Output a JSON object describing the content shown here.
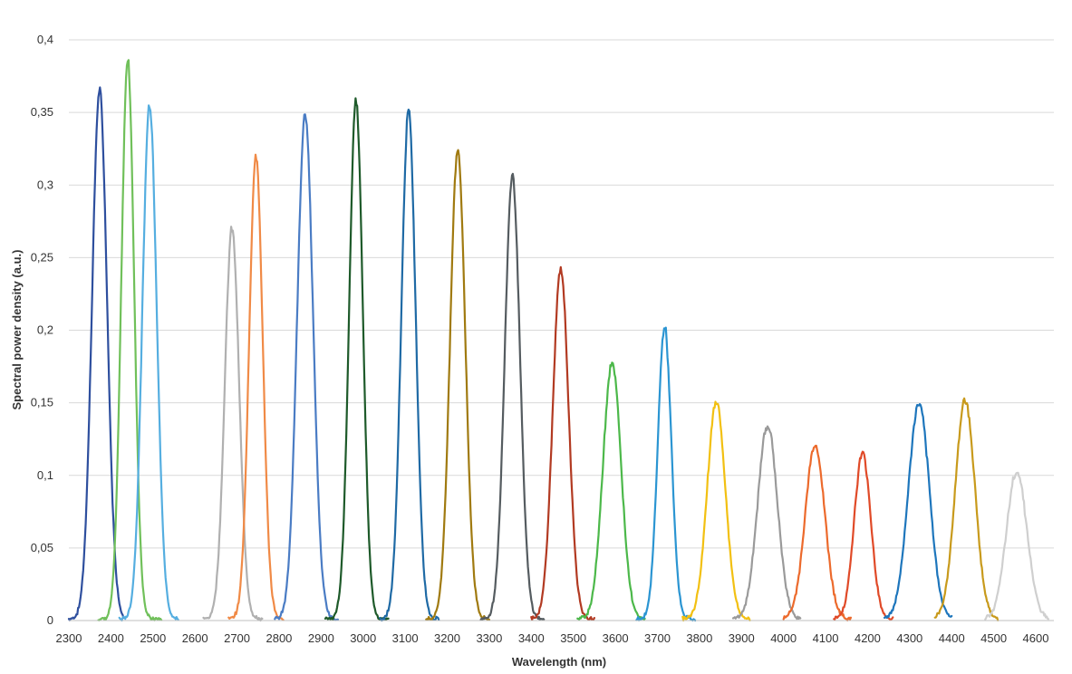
{
  "chart_data": {
    "type": "line",
    "title": "",
    "xlabel": "Wavelength (nm)",
    "ylabel": "Spectral power density (a.u.)",
    "xlim": [
      2300,
      4650
    ],
    "ylim": [
      0,
      0.4
    ],
    "x_ticks": [
      2300,
      2400,
      2500,
      2600,
      2700,
      2800,
      2900,
      3000,
      3100,
      3200,
      3300,
      3400,
      3500,
      3600,
      3700,
      3800,
      3900,
      4000,
      4100,
      4200,
      4300,
      4400,
      4500,
      4600
    ],
    "y_ticks": [
      0,
      0.05,
      0.1,
      0.15,
      0.2,
      0.25,
      0.3,
      0.35,
      0.4
    ],
    "y_tick_labels": [
      "0",
      "0,05",
      "0,1",
      "0,15",
      "0,2",
      "0,25",
      "0,3",
      "0,35",
      "0,4"
    ],
    "grid": "horizontal",
    "legend": "none",
    "series": [
      {
        "color": "#2e4f9e",
        "center": 2373,
        "peak": 0.364,
        "fwhm": 40,
        "start": 2300,
        "end": 2430
      },
      {
        "color": "#70c05a",
        "center": 2440,
        "peak": 0.386,
        "fwhm": 34,
        "start": 2370,
        "end": 2520
      },
      {
        "color": "#55aee0",
        "center": 2492,
        "peak": 0.355,
        "fwhm": 38,
        "start": 2420,
        "end": 2560
      },
      {
        "color": "#b0b0b0",
        "center": 2688,
        "peak": 0.269,
        "fwhm": 38,
        "start": 2620,
        "end": 2760
      },
      {
        "color": "#f08a46",
        "center": 2745,
        "peak": 0.319,
        "fwhm": 36,
        "start": 2680,
        "end": 2810
      },
      {
        "color": "#4a7cc4",
        "center": 2862,
        "peak": 0.348,
        "fwhm": 42,
        "start": 2790,
        "end": 2940
      },
      {
        "color": "#1e5a2a",
        "center": 2983,
        "peak": 0.357,
        "fwhm": 36,
        "start": 2910,
        "end": 3060
      },
      {
        "color": "#1f6aa5",
        "center": 3108,
        "peak": 0.35,
        "fwhm": 38,
        "start": 3040,
        "end": 3180
      },
      {
        "color": "#a07a10",
        "center": 3225,
        "peak": 0.324,
        "fwhm": 40,
        "start": 3150,
        "end": 3300
      },
      {
        "color": "#555c60",
        "center": 3355,
        "peak": 0.306,
        "fwhm": 40,
        "start": 3280,
        "end": 3430
      },
      {
        "color": "#b23a22",
        "center": 3470,
        "peak": 0.241,
        "fwhm": 42,
        "start": 3400,
        "end": 3550
      },
      {
        "color": "#4cb84a",
        "center": 3592,
        "peak": 0.177,
        "fwhm": 48,
        "start": 3510,
        "end": 3670
      },
      {
        "color": "#2b95d2",
        "center": 3717,
        "peak": 0.201,
        "fwhm": 36,
        "start": 3650,
        "end": 3790
      },
      {
        "color": "#f2c012",
        "center": 3840,
        "peak": 0.15,
        "fwhm": 48,
        "start": 3760,
        "end": 3920
      },
      {
        "color": "#9a9a9a",
        "center": 3962,
        "peak": 0.134,
        "fwhm": 52,
        "start": 3880,
        "end": 4040
      },
      {
        "color": "#ec6a2c",
        "center": 4075,
        "peak": 0.12,
        "fwhm": 52,
        "start": 4000,
        "end": 4160
      },
      {
        "color": "#e04a28",
        "center": 4188,
        "peak": 0.114,
        "fwhm": 44,
        "start": 4120,
        "end": 4260
      },
      {
        "color": "#1e76bc",
        "center": 4322,
        "peak": 0.148,
        "fwhm": 56,
        "start": 4240,
        "end": 4400
      },
      {
        "color": "#c89a1c",
        "center": 4432,
        "peak": 0.151,
        "fwhm": 52,
        "start": 4360,
        "end": 4510
      },
      {
        "color": "#cfcfcf",
        "center": 4555,
        "peak": 0.102,
        "fwhm": 54,
        "start": 4480,
        "end": 4630
      }
    ]
  }
}
